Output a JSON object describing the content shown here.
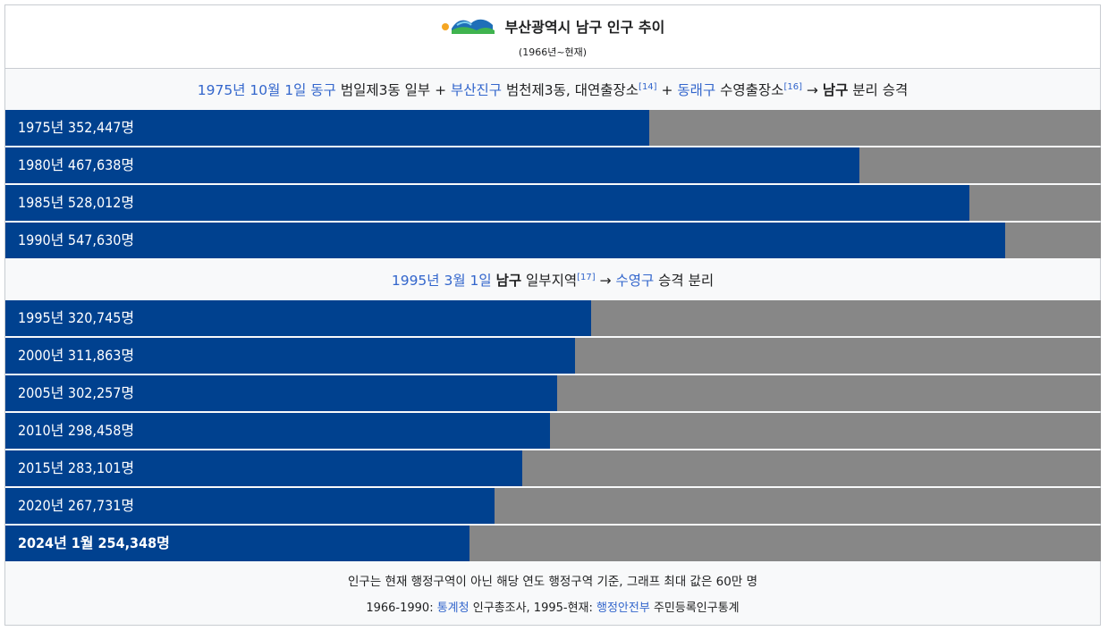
{
  "title": "부산광역시 남구 인구 추이",
  "subtitle": "(1966년~현재)",
  "colors": {
    "bar": "#00418f",
    "track": "#878787",
    "link": "#3366cc"
  },
  "sections": [
    {
      "header": {
        "date_link": "1975년 10월 1일",
        "gu1_link": "동구",
        "text1": " 범일제3동 일부 + ",
        "gu2_link": "부산진구",
        "text2": " 범천제3동, 대연출장소",
        "ref1": "[14]",
        "text3": " + ",
        "gu3_link": "동래구",
        "text4": " 수영출장소",
        "ref2": "[16]",
        "text5": " → ",
        "bold": "남구",
        "text6": " 분리 승격"
      }
    },
    {
      "header": {
        "date_link": "1995년 3월 1일",
        "bold": "남구",
        "text1": " 일부지역",
        "ref1": "[17]",
        "text2": " → ",
        "gu_link": "수영구",
        "text3": " 승격 분리"
      }
    }
  ],
  "chart_data": {
    "type": "bar",
    "orientation": "horizontal",
    "title": "부산광역시 남구 인구 추이",
    "subtitle": "(1966년~현재)",
    "xlim": [
      0,
      600000
    ],
    "unit": "명",
    "categories": [
      "1975년",
      "1980년",
      "1985년",
      "1990년",
      "1995년",
      "2000년",
      "2005년",
      "2010년",
      "2015년",
      "2020년",
      "2024년 1월"
    ],
    "values": [
      352447,
      467638,
      528012,
      547630,
      320745,
      311863,
      302257,
      298458,
      283101,
      267731,
      254348
    ],
    "labels": [
      "1975년 352,447명",
      "1980년 467,638명",
      "1985년 528,012명",
      "1990년 547,630명",
      "1995년 320,745명",
      "2000년 311,863명",
      "2005년 302,257명",
      "2010년 298,458명",
      "2015년 283,101명",
      "2020년 267,731명",
      "2024년 1월 254,348명"
    ]
  },
  "footer": {
    "note": "인구는 현재 행정구역이 아닌 해당 연도 행정구역 기준, 그래프 최대 값은 60만 명",
    "source_prefix": "1966-1990: ",
    "source_link1": "통계청",
    "source_mid": " 인구총조사, 1995-현재: ",
    "source_link2": "행정안전부",
    "source_suffix": " 주민등록인구통계"
  }
}
